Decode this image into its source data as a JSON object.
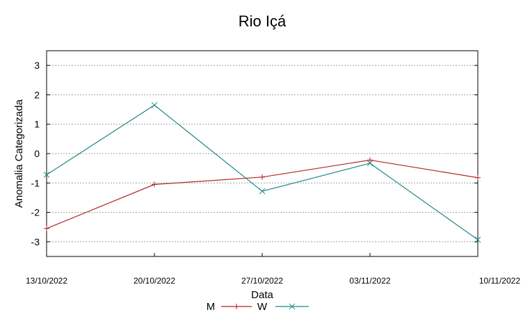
{
  "chart_data": {
    "type": "line",
    "title": "Rio Içá",
    "xlabel": "Data",
    "ylabel": "Anomalia Categorizada",
    "categories": [
      "13/10/2022",
      "20/10/2022",
      "27/10/2022",
      "03/11/2022",
      "10/11/2022"
    ],
    "ylim": [
      -3.5,
      3.5
    ],
    "yticks": [
      3,
      2,
      1,
      0,
      -1,
      -2,
      -3
    ],
    "grid": true,
    "legend_position": "bottom",
    "series": [
      {
        "name": "M",
        "values": [
          -2.55,
          -1.05,
          -0.8,
          -0.22,
          -0.82
        ],
        "color": "#b22222",
        "marker": "plus"
      },
      {
        "name": "W",
        "values": [
          -0.72,
          1.65,
          -1.28,
          -0.33,
          -2.93
        ],
        "color": "#1f8a8a",
        "marker": "cross"
      }
    ]
  }
}
